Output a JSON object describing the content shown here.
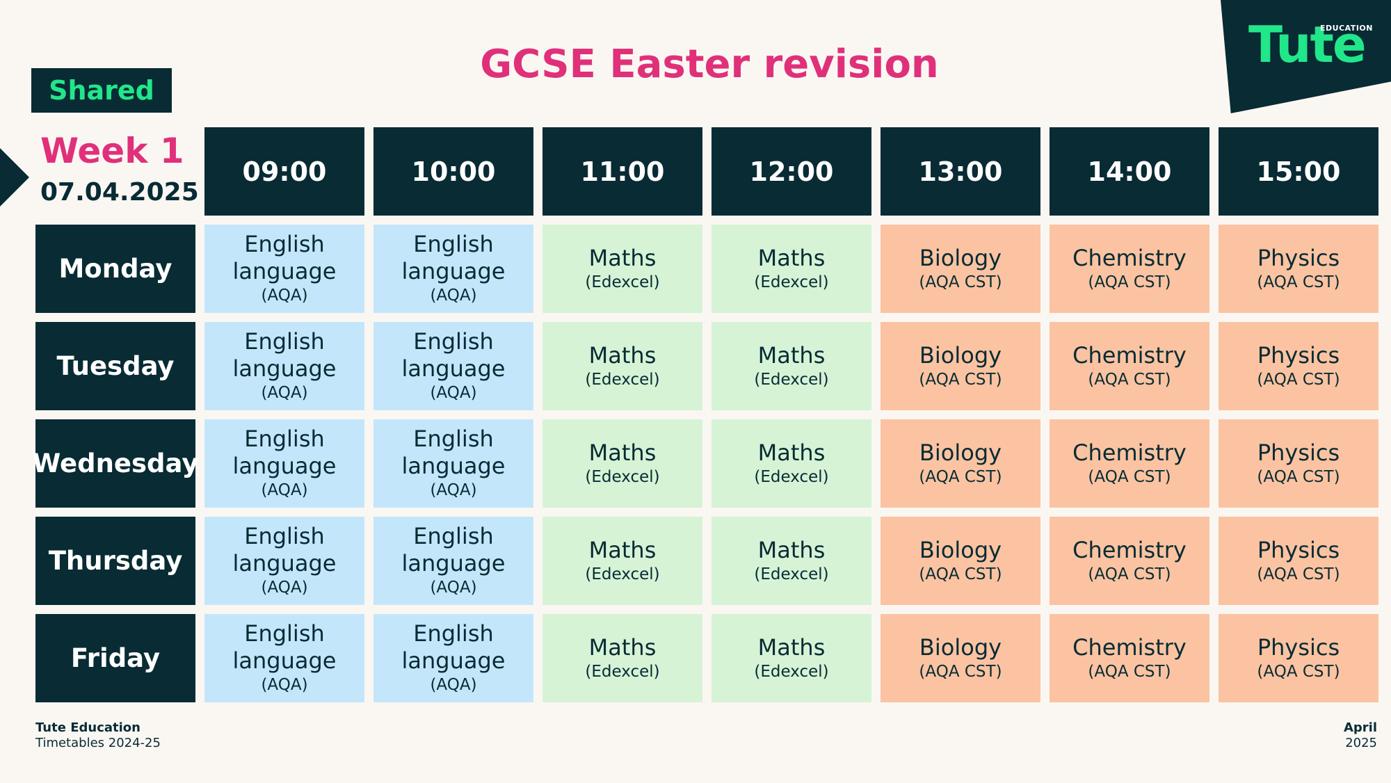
{
  "badge": "Shared",
  "title": "GCSE Easter revision",
  "logo": {
    "word": "Tute",
    "sub": "EDUCATION"
  },
  "week": {
    "label": "Week 1",
    "date": "07.04.2025"
  },
  "times": [
    "09:00",
    "10:00",
    "11:00",
    "12:00",
    "13:00",
    "14:00",
    "15:00"
  ],
  "days": [
    "Monday",
    "Tuesday",
    "Wednesday",
    "Thursday",
    "Friday"
  ],
  "slots": [
    {
      "subject": "English language",
      "board": "(AQA)",
      "color": "#c4e6fb"
    },
    {
      "subject": "English language",
      "board": "(AQA)",
      "color": "#c4e6fb"
    },
    {
      "subject": "Maths",
      "board": "(Edexcel)",
      "color": "#d6f3d6"
    },
    {
      "subject": "Maths",
      "board": "(Edexcel)",
      "color": "#d6f3d6"
    },
    {
      "subject": "Biology",
      "board": "(AQA CST)",
      "color": "#fbc3a1"
    },
    {
      "subject": "Chemistry",
      "board": "(AQA CST)",
      "color": "#fbc3a1"
    },
    {
      "subject": "Physics",
      "board": "(AQA CST)",
      "color": "#fbc3a1"
    }
  ],
  "footer": {
    "org": "Tute Education",
    "line2": "Timetables 2024-25",
    "month": "April",
    "year": "2025"
  },
  "colors": {
    "dark": "#082b34",
    "pink": "#e0307a",
    "green": "#22e68a"
  }
}
